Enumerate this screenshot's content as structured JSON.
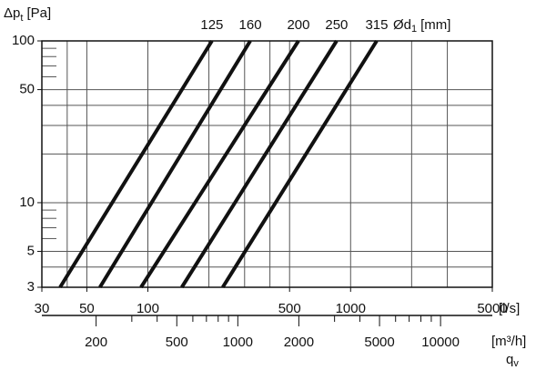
{
  "chart_data": {
    "type": "line",
    "y_label": {
      "symbol": "Δp",
      "subscript": "t",
      "unit": "[Pa]"
    },
    "legend_title": {
      "symbol": "Ød",
      "subscript": "1",
      "unit": "[mm]"
    },
    "x_unit": "[l/s]",
    "x2_label": {
      "unit": "[m³/h]",
      "symbol": "q",
      "subscript": "v"
    },
    "log_x": true,
    "log_y": true,
    "grid": true,
    "xlim": [
      30,
      5000
    ],
    "ylim": [
      3,
      100
    ],
    "xticks": [
      30,
      50,
      100,
      500,
      1000,
      5000
    ],
    "x_grid": [
      40,
      50,
      100,
      200,
      300,
      400,
      500,
      1000,
      2000,
      3000
    ],
    "yticks": [
      3,
      5,
      10,
      50,
      100
    ],
    "y_grid": [
      4,
      5,
      10,
      20,
      30,
      40,
      50
    ],
    "y_minor_ticks": [
      6,
      7,
      8,
      9,
      60,
      70,
      80,
      90
    ],
    "x2lim": [
      108,
      18000
    ],
    "x2ticks": [
      200,
      500,
      1000,
      2000,
      5000,
      10000
    ],
    "x2_minor_ticks": [
      300,
      400,
      600,
      700,
      800,
      900,
      3000,
      4000,
      6000,
      7000,
      8000,
      9000
    ],
    "series": [
      {
        "name": "125",
        "color": "#111111",
        "x": [
          36.9,
          207
        ],
        "y": [
          3,
          100
        ]
      },
      {
        "name": "160",
        "color": "#111111",
        "x": [
          58,
          320
        ],
        "y": [
          3,
          100
        ]
      },
      {
        "name": "200",
        "color": "#111111",
        "x": [
          92.5,
          553
        ],
        "y": [
          3,
          100
        ]
      },
      {
        "name": "250",
        "color": "#111111",
        "x": [
          147,
          853
        ],
        "y": [
          3,
          100
        ]
      },
      {
        "name": "315",
        "color": "#111111",
        "x": [
          234,
          1345
        ],
        "y": [
          3,
          100
        ]
      }
    ]
  }
}
